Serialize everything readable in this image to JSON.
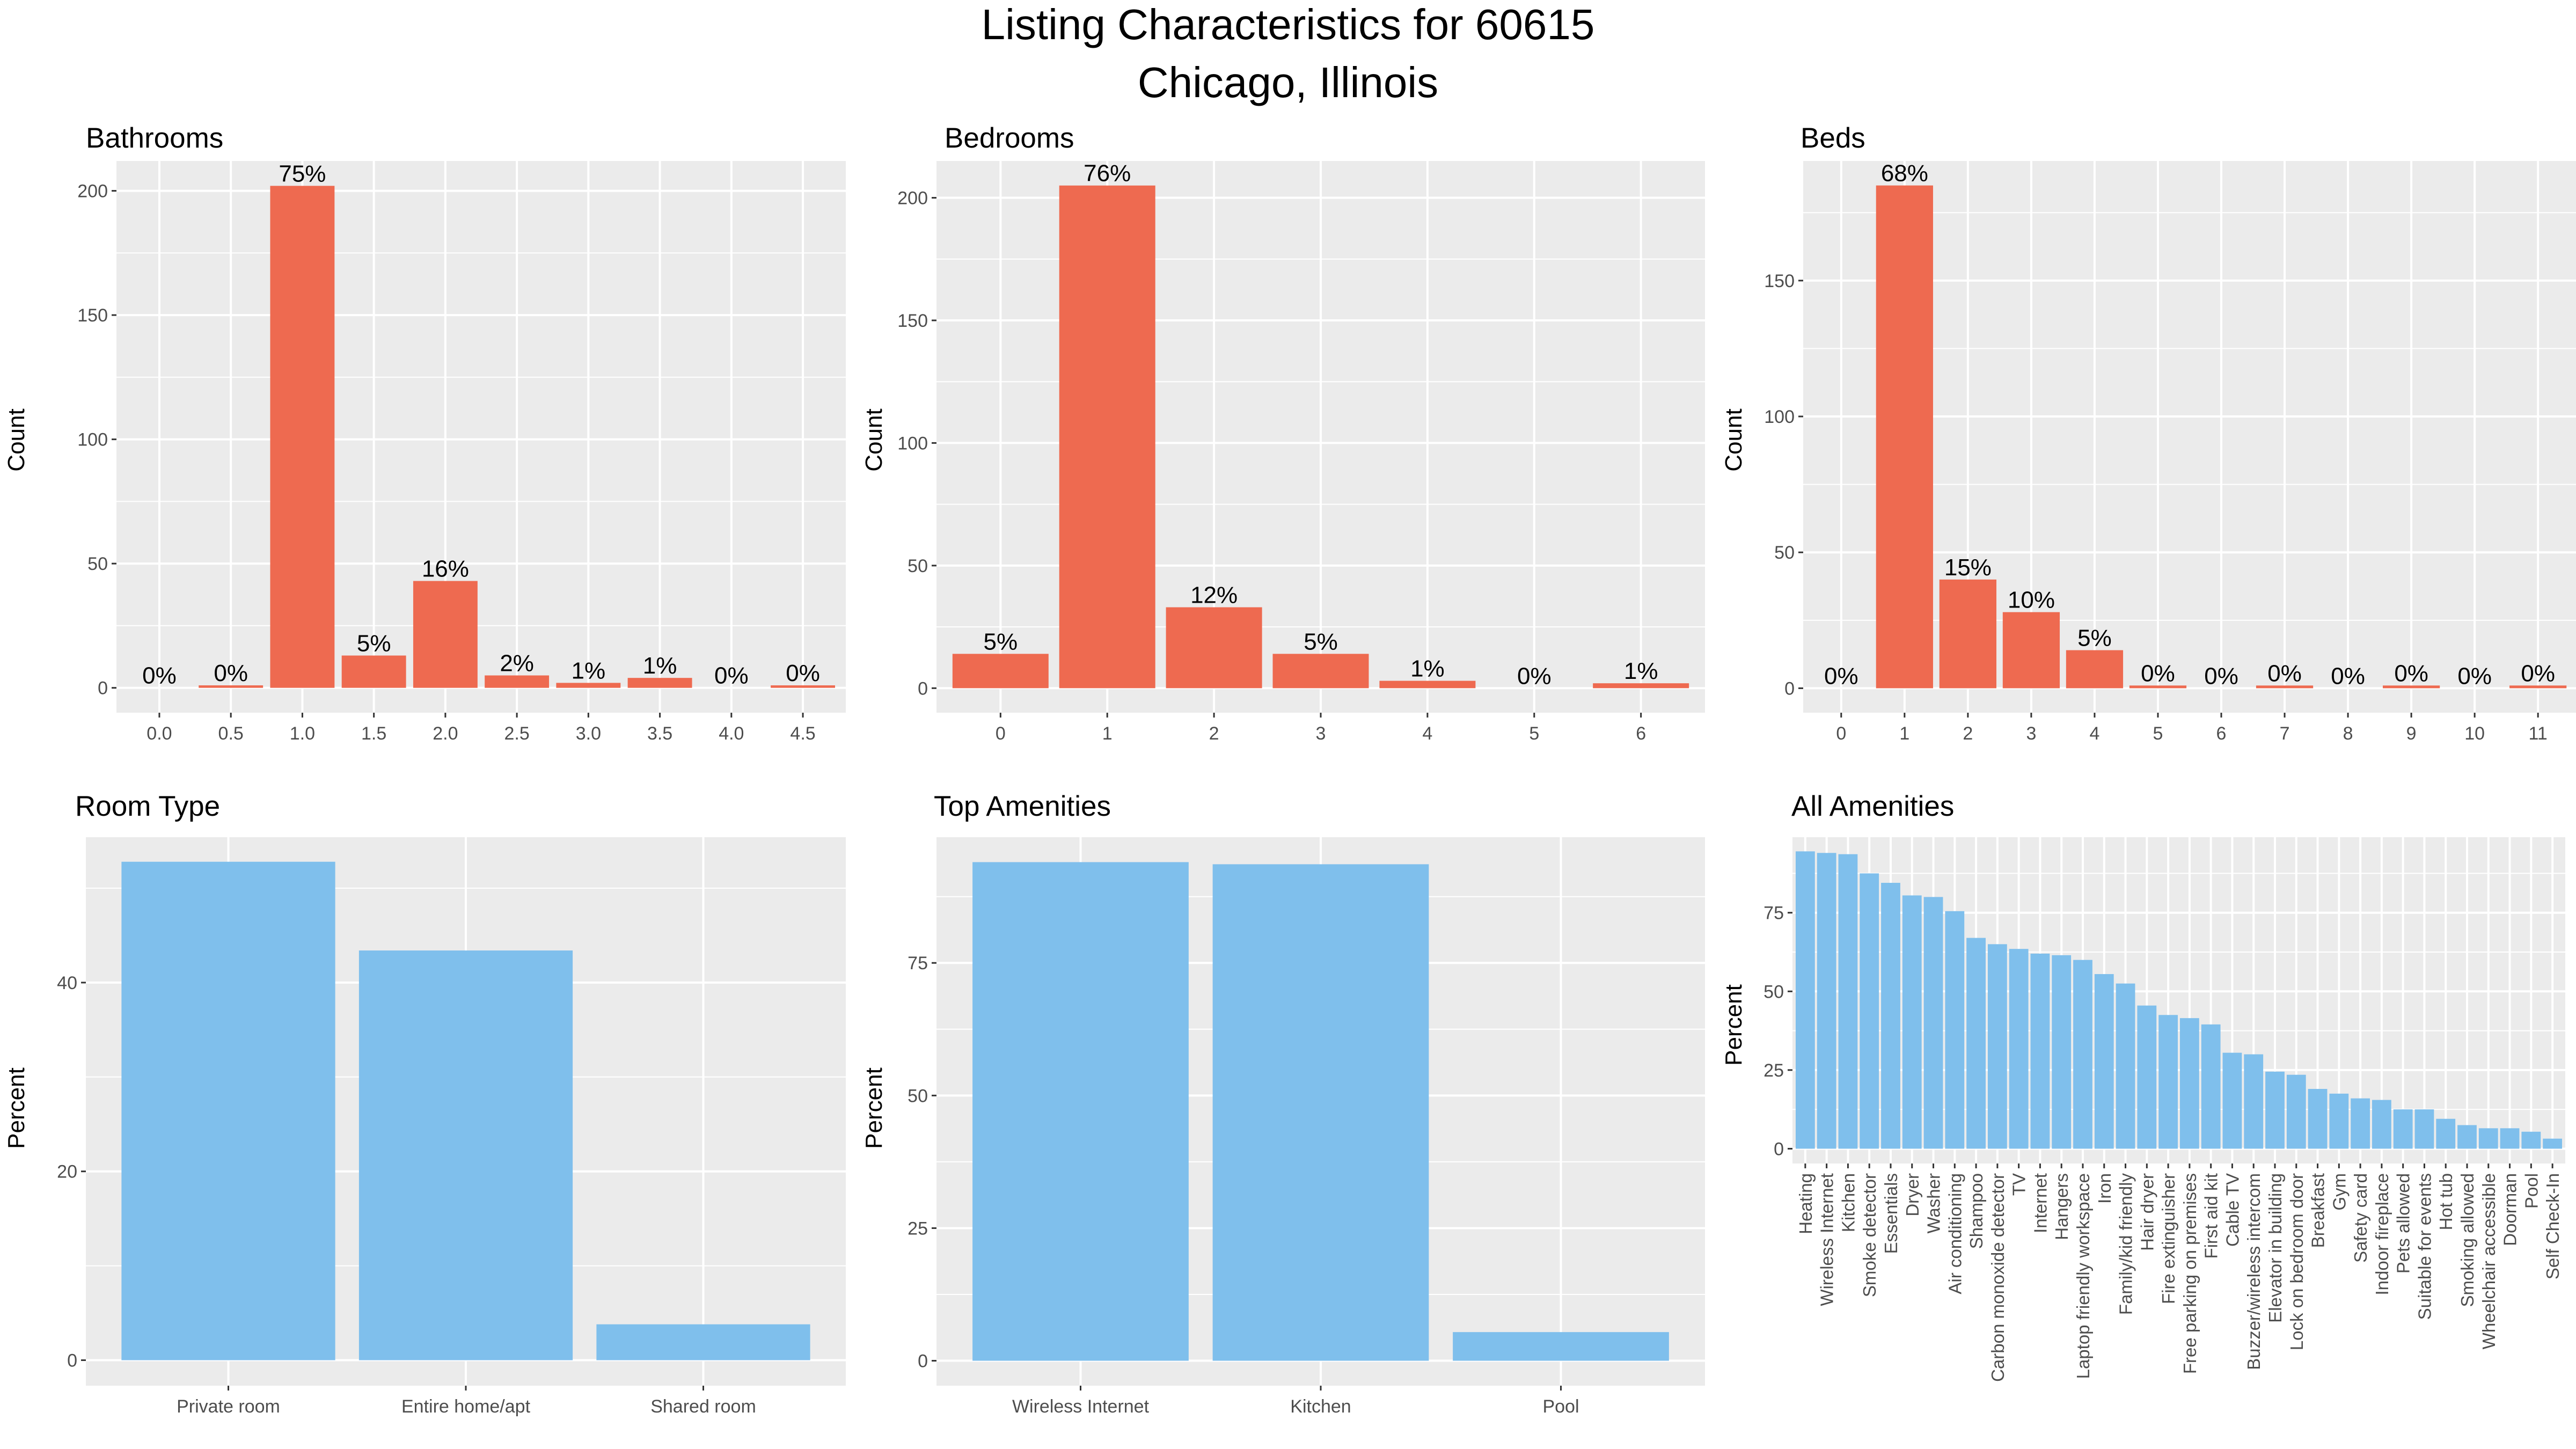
{
  "title": {
    "line1": "Listing Characteristics for 60615",
    "line2": "Chicago, Illinois"
  },
  "colors": {
    "bar_count": "#EE6A50",
    "bar_percent": "#7FBFEC",
    "panel_background": "#EBEBEB",
    "grid": "#FFFFFF",
    "axis_text": "#4D4D4D"
  },
  "chart_data": [
    {
      "id": "bathrooms",
      "type": "bar",
      "title": "Bathrooms",
      "xlabel": "",
      "ylabel": "Count",
      "categories": [
        "0.0",
        "0.5",
        "1.0",
        "1.5",
        "2.0",
        "2.5",
        "3.0",
        "3.5",
        "4.0",
        "4.5"
      ],
      "values": [
        0,
        1,
        202,
        13,
        43,
        5,
        2,
        4,
        0,
        1
      ],
      "labels": [
        "0%",
        "0%",
        "75%",
        "5%",
        "16%",
        "2%",
        "1%",
        "1%",
        "0%",
        "0%"
      ],
      "ylim": [
        -10,
        212
      ],
      "yticks": [
        0,
        50,
        100,
        150,
        200
      ],
      "grid": true
    },
    {
      "id": "bedrooms",
      "type": "bar",
      "title": "Bedrooms",
      "xlabel": "",
      "ylabel": "Count",
      "categories": [
        "0",
        "1",
        "2",
        "3",
        "4",
        "5",
        "6"
      ],
      "values": [
        14,
        205,
        33,
        14,
        3,
        0,
        2
      ],
      "labels": [
        "5%",
        "76%",
        "12%",
        "5%",
        "1%",
        "0%",
        "1%"
      ],
      "ylim": [
        -10,
        215
      ],
      "yticks": [
        0,
        50,
        100,
        150,
        200
      ],
      "grid": true
    },
    {
      "id": "beds",
      "type": "bar",
      "title": "Beds",
      "xlabel": "",
      "ylabel": "Count",
      "categories": [
        "0",
        "1",
        "2",
        "3",
        "4",
        "5",
        "6",
        "7",
        "8",
        "9",
        "10",
        "11"
      ],
      "values": [
        0,
        185,
        40,
        28,
        14,
        1,
        0,
        1,
        0,
        1,
        0,
        1
      ],
      "labels": [
        "0%",
        "68%",
        "15%",
        "10%",
        "5%",
        "0%",
        "0%",
        "0%",
        "0%",
        "0%",
        "0%",
        "0%"
      ],
      "ylim": [
        -9,
        194
      ],
      "yticks": [
        0,
        50,
        100,
        150
      ],
      "grid": true
    },
    {
      "id": "room_type",
      "type": "bar",
      "title": "Room Type",
      "xlabel": "",
      "ylabel": "Percent",
      "categories": [
        "Private room",
        "Entire home/apt",
        "Shared room"
      ],
      "values": [
        52.8,
        43.4,
        3.8
      ],
      "ylim": [
        -2.7,
        55.4
      ],
      "yticks": [
        0,
        20,
        40
      ],
      "grid": true
    },
    {
      "id": "top_amenities",
      "type": "bar",
      "title": "Top Amenities",
      "xlabel": "",
      "ylabel": "Percent",
      "categories": [
        "Wireless Internet",
        "Kitchen",
        "Pool"
      ],
      "values": [
        94.0,
        93.6,
        5.4
      ],
      "ylim": [
        -4.7,
        98.7
      ],
      "yticks": [
        0,
        25,
        50,
        75
      ],
      "grid": true
    },
    {
      "id": "all_amenities",
      "type": "bar",
      "title": "All Amenities",
      "xlabel": "",
      "ylabel": "Percent",
      "categories": [
        "Heating",
        "Wireless Internet",
        "Kitchen",
        "Smoke detector",
        "Essentials",
        "Dryer",
        "Washer",
        "Air conditioning",
        "Shampoo",
        "Carbon monoxide detector",
        "TV",
        "Internet",
        "Hangers",
        "Laptop friendly workspace",
        "Iron",
        "Family/kid friendly",
        "Hair dryer",
        "Fire extinguisher",
        "Free parking on premises",
        "First aid kit",
        "Cable TV",
        "Buzzer/wireless intercom",
        "Elevator in building",
        "Lock on bedroom door",
        "Breakfast",
        "Gym",
        "Safety card",
        "Indoor fireplace",
        "Pets allowed",
        "Suitable for events",
        "Hot tub",
        "Smoking allowed",
        "Wheelchair accessible",
        "Doorman",
        "Pool",
        "Self Check-In"
      ],
      "values": [
        94.5,
        94.0,
        93.6,
        87.5,
        84.5,
        80.5,
        80.0,
        75.5,
        67.0,
        65.0,
        63.5,
        62.0,
        61.5,
        60.0,
        55.5,
        52.5,
        45.5,
        42.5,
        41.5,
        39.5,
        30.5,
        30.0,
        24.5,
        23.5,
        19.0,
        17.5,
        16.0,
        15.5,
        12.5,
        12.5,
        9.5,
        7.5,
        6.5,
        6.5,
        5.4,
        3.2
      ],
      "ylim": [
        -4.7,
        99
      ],
      "yticks": [
        0,
        25,
        50,
        75
      ],
      "grid": true
    }
  ]
}
